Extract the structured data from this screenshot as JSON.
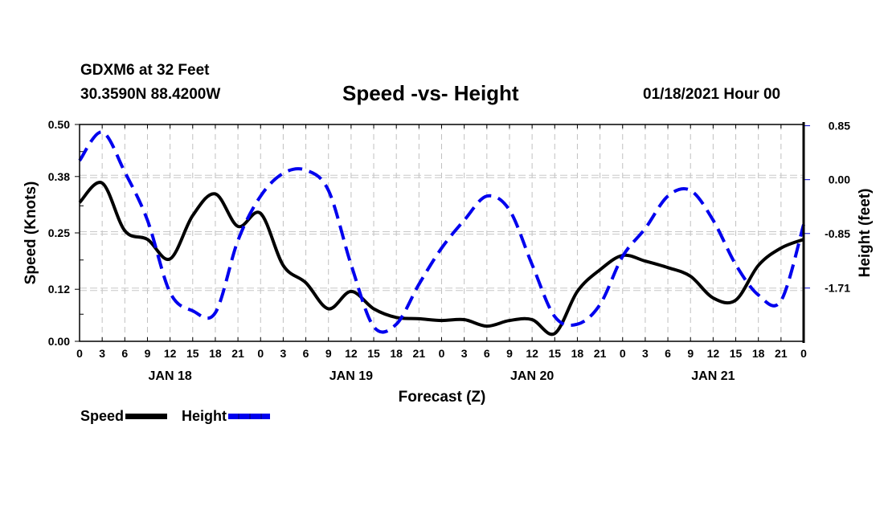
{
  "header": {
    "station": "GDXM6 at 32 Feet",
    "coords": "30.3590N 88.4200W",
    "title": "Speed -vs- Height",
    "datetime": "01/18/2021 Hour 00"
  },
  "legend": {
    "speed_label": "Speed",
    "height_label": "Height"
  },
  "chart_data": {
    "type": "line",
    "title": "Speed -vs- Height",
    "xlabel": "Forecast (Z)",
    "ylabel_left": "Speed (Knots)",
    "ylabel_right": "Height (feet)",
    "x_hours": [
      0,
      3,
      6,
      9,
      12,
      15,
      18,
      21,
      24,
      27,
      30,
      33,
      36,
      39,
      42,
      45,
      48,
      51,
      54,
      57,
      60,
      63,
      66,
      69,
      72,
      75,
      78,
      81,
      84,
      87,
      90,
      93,
      96
    ],
    "x_tick_labels": [
      "0",
      "3",
      "6",
      "9",
      "12",
      "15",
      "18",
      "21",
      "0",
      "3",
      "6",
      "9",
      "12",
      "15",
      "18",
      "21",
      "0",
      "3",
      "6",
      "9",
      "12",
      "15",
      "18",
      "21",
      "0",
      "3",
      "6",
      "9",
      "12",
      "15",
      "18",
      "21",
      "0"
    ],
    "day_labels": [
      {
        "label": "JAN 18",
        "center_hour": 12
      },
      {
        "label": "JAN 19",
        "center_hour": 36
      },
      {
        "label": "JAN 20",
        "center_hour": 60
      },
      {
        "label": "JAN 21",
        "center_hour": 84
      }
    ],
    "xlim": [
      0,
      96
    ],
    "y_left": {
      "ylim": [
        0,
        0.5
      ],
      "ticks": [
        0.0,
        0.12,
        0.25,
        0.38,
        0.5
      ],
      "tick_labels": [
        "0.00",
        "0.12",
        "0.25",
        "0.38",
        "0.50"
      ]
    },
    "y_right": {
      "ylim": [
        -2.55,
        0.87
      ],
      "ticks": [
        0.85,
        0.0,
        -0.85,
        -1.71
      ],
      "tick_labels": [
        "0.85",
        "0.00",
        "-0.85",
        "-1.71"
      ]
    },
    "grid": true,
    "legend_position": "bottom-left",
    "series": [
      {
        "name": "Speed",
        "axis": "left",
        "color": "#000000",
        "style": "solid",
        "values": [
          0.32,
          0.365,
          0.255,
          0.235,
          0.19,
          0.29,
          0.34,
          0.265,
          0.295,
          0.175,
          0.135,
          0.075,
          0.115,
          0.075,
          0.055,
          0.052,
          0.048,
          0.05,
          0.035,
          0.048,
          0.05,
          0.018,
          0.115,
          0.165,
          0.198,
          0.185,
          0.17,
          0.15,
          0.1,
          0.095,
          0.175,
          0.215,
          0.235
        ]
      },
      {
        "name": "Height",
        "axis": "right",
        "color": "#0000ee",
        "style": "dashed",
        "values": [
          0.3,
          0.75,
          0.12,
          -0.64,
          -1.78,
          -2.07,
          -2.1,
          -0.96,
          -0.26,
          0.1,
          0.15,
          -0.17,
          -1.34,
          -2.32,
          -2.28,
          -1.65,
          -1.08,
          -0.64,
          -0.26,
          -0.48,
          -1.34,
          -2.16,
          -2.28,
          -1.97,
          -1.21,
          -0.77,
          -0.26,
          -0.17,
          -0.64,
          -1.34,
          -1.82,
          -1.91,
          -0.71
        ]
      }
    ]
  }
}
